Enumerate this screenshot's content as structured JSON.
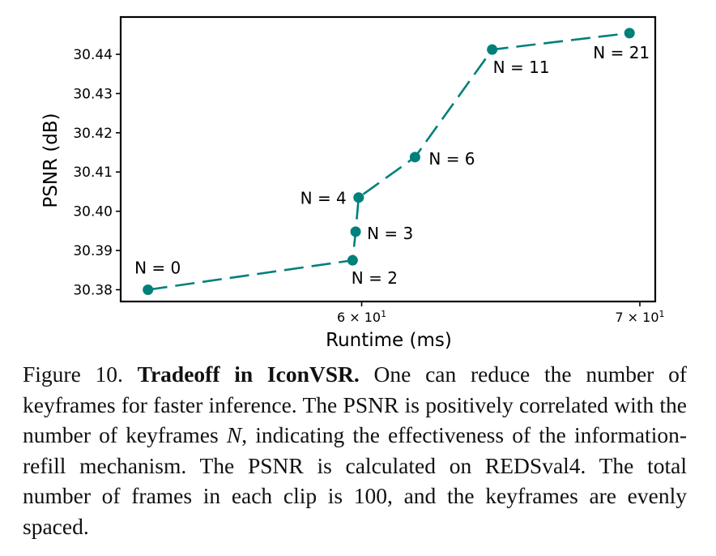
{
  "chart_data": {
    "type": "line",
    "xlabel": "Runtime (ms)",
    "ylabel": "PSNR (dB)",
    "x_scale": "log",
    "xlim": [
      52.5,
      70.6
    ],
    "ylim": [
      30.377,
      30.4495
    ],
    "x_ticks": [
      {
        "value": 60,
        "label": "6 × 10",
        "exp": "1"
      },
      {
        "value": 70,
        "label": "7 × 10",
        "exp": "1"
      }
    ],
    "y_ticks": [
      30.38,
      30.39,
      30.4,
      30.41,
      30.42,
      30.43,
      30.44
    ],
    "y_tick_labels": [
      "30.38",
      "30.39",
      "30.40",
      "30.41",
      "30.42",
      "30.43",
      "30.44"
    ],
    "color": "#00807a",
    "line_style": "dashed",
    "grid": false,
    "series": [
      {
        "points": [
          {
            "x": 53.3,
            "y": 30.38,
            "label": "N = 0"
          },
          {
            "x": 59.7,
            "y": 30.3875,
            "label": "N = 2"
          },
          {
            "x": 59.8,
            "y": 30.3948,
            "label": "N = 3"
          },
          {
            "x": 59.9,
            "y": 30.4035,
            "label": "N = 4"
          },
          {
            "x": 61.8,
            "y": 30.4138,
            "label": "N = 6"
          },
          {
            "x": 64.5,
            "y": 30.4412,
            "label": "N = 11"
          },
          {
            "x": 69.6,
            "y": 30.4454,
            "label": "N = 21"
          }
        ]
      }
    ]
  },
  "caption": {
    "prefix": "Figure 10. ",
    "bold": "Tradeoff in IconVSR.",
    "part1": " One can reduce the number of keyframes for faster inference. The PSNR is positively correlated with the number of keyframes ",
    "var": "N",
    "part2": ", indicating the effectiveness of the information-refill mechanism. The PSNR is calculated on REDSval4. The total number of frames in each clip is 100, and the keyframes are evenly spaced."
  }
}
